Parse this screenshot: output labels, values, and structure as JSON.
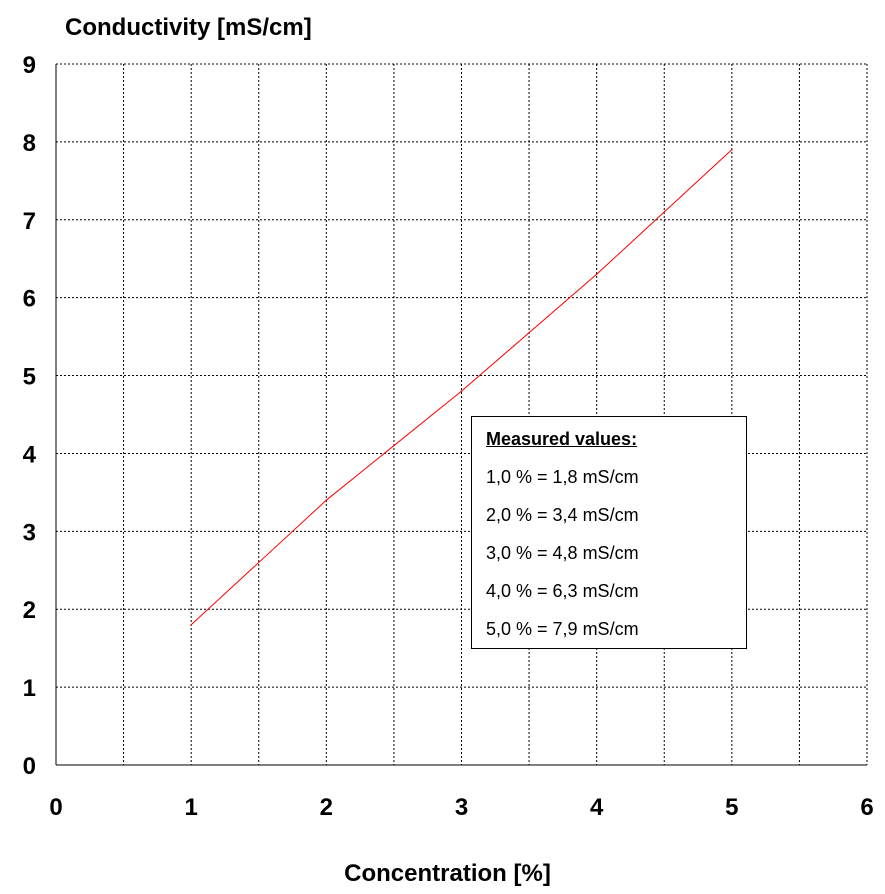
{
  "chart_data": {
    "type": "line",
    "ylabel": "Conductivity [mS/cm]",
    "xlabel": "Concentration [%]",
    "xlim": [
      0,
      6
    ],
    "ylim": [
      0,
      9
    ],
    "x_ticks": [
      "0",
      "1",
      "2",
      "3",
      "4",
      "5",
      "6"
    ],
    "y_ticks": [
      "0",
      "1",
      "2",
      "3",
      "4",
      "5",
      "6",
      "7",
      "8",
      "9"
    ],
    "grid": true,
    "series": [
      {
        "color": "#ff0000",
        "x": [
          1.0,
          2.0,
          3.0,
          4.0,
          5.0
        ],
        "y": [
          1.8,
          3.4,
          4.8,
          6.3,
          7.9
        ]
      }
    ],
    "annotation": {
      "title": "Measured values:",
      "lines": [
        "1,0 % = 1,8 mS/cm",
        "2,0 % = 3,4 mS/cm",
        "3,0 % = 4,8 mS/cm",
        "4,0 % = 6,3 mS/cm",
        "5,0 % = 7,9 mS/cm"
      ]
    }
  }
}
